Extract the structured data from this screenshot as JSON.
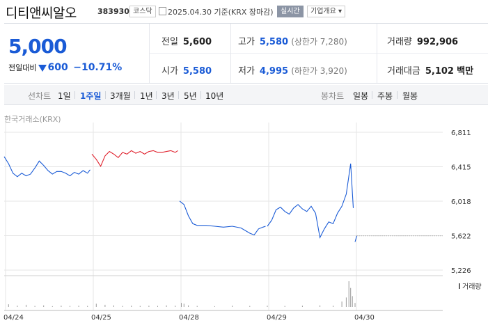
{
  "header": {
    "name": "디티앤씨알오",
    "code": "383930",
    "market": "코스닥",
    "date": "2025.04.30",
    "basis": "기준(KRX 장마감)",
    "realtime": "실시간",
    "overview": "기업개요"
  },
  "quote": {
    "price": "5,000",
    "change_label": "전일대비",
    "change": "600",
    "change_pct": "−10.71%",
    "prev_label": "전일",
    "prev": "5,600",
    "high_label": "고가",
    "high": "5,580",
    "upper_limit": "(상한가 7,280)",
    "volume_label": "거래량",
    "volume": "992,906",
    "open_label": "시가",
    "open": "5,580",
    "low_label": "저가",
    "low": "4,995",
    "lower_limit": "(하한가 3,920)",
    "amount_label": "거래대금",
    "amount": "5,102",
    "amount_unit": "백만"
  },
  "toolbar": {
    "line_label": "선차트",
    "line_periods": [
      "1일",
      "1주일",
      "3개월",
      "1년",
      "3년",
      "5년",
      "10년"
    ],
    "active_period": "1주일",
    "candle_label": "봉차트",
    "candle_periods": [
      "일봉",
      "주봉",
      "월봉"
    ]
  },
  "colors": {
    "up": "#e0202c",
    "down": "#1a5bd6",
    "grid": "#e6e6e6"
  },
  "chart_data": {
    "type": "line",
    "source": "한국거래소(KRX)",
    "y_ticks": [
      6811,
      6415,
      6018,
      5622,
      5226
    ],
    "ylim": [
      5226,
      6811
    ],
    "x_ticks": [
      "04/24",
      "04/25",
      "04/28",
      "04/29",
      "04/30"
    ],
    "volume_label": "거래량",
    "reference_price": 5600,
    "series": [
      {
        "color": "up_down_by_day",
        "segments": [
          {
            "day": "04/24",
            "trend": "down",
            "x": [
              0,
              0.05,
              0.1,
              0.15,
              0.2,
              0.25,
              0.3,
              0.35,
              0.4,
              0.45,
              0.5,
              0.55,
              0.6,
              0.65,
              0.7,
              0.75,
              0.8,
              0.85,
              0.9,
              0.95,
              0.98
            ],
            "y": [
              6530,
              6450,
              6340,
              6300,
              6340,
              6310,
              6330,
              6400,
              6480,
              6430,
              6370,
              6330,
              6360,
              6360,
              6340,
              6310,
              6350,
              6330,
              6370,
              6340,
              6380
            ]
          },
          {
            "day": "04/25",
            "trend": "up",
            "x": [
              1.0,
              1.05,
              1.1,
              1.15,
              1.2,
              1.25,
              1.3,
              1.35,
              1.4,
              1.45,
              1.5,
              1.55,
              1.6,
              1.65,
              1.7,
              1.75,
              1.8,
              1.85,
              1.9,
              1.95,
              1.98
            ],
            "y": [
              6560,
              6500,
              6420,
              6540,
              6590,
              6560,
              6520,
              6580,
              6560,
              6600,
              6570,
              6590,
              6560,
              6590,
              6600,
              6580,
              6580,
              6590,
              6600,
              6580,
              6600
            ]
          },
          {
            "day": "04/28",
            "trend": "down",
            "x": [
              2.0,
              2.05,
              2.1,
              2.15,
              2.2,
              2.3,
              2.4,
              2.5,
              2.6,
              2.7,
              2.8,
              2.85,
              2.9,
              2.95,
              2.98
            ],
            "y": [
              6020,
              5980,
              5850,
              5760,
              5740,
              5740,
              5730,
              5720,
              5730,
              5710,
              5650,
              5630,
              5700,
              5720,
              5730
            ]
          },
          {
            "day": "04/29",
            "trend": "down",
            "x": [
              3.0,
              3.05,
              3.1,
              3.15,
              3.2,
              3.25,
              3.3,
              3.35,
              3.4,
              3.45,
              3.5,
              3.55,
              3.6,
              3.65,
              3.7,
              3.75,
              3.8,
              3.85,
              3.9,
              3.95,
              3.98
            ],
            "y": [
              5730,
              5800,
              5920,
              5950,
              5900,
              5870,
              5940,
              5980,
              5930,
              5900,
              5960,
              5880,
              5600,
              5700,
              5780,
              5760,
              5880,
              5960,
              6100,
              6450,
              5940
            ]
          },
          {
            "day": "04/30",
            "trend": "down",
            "x": [
              4.0,
              4.02
            ],
            "y": [
              5550,
              5620
            ]
          }
        ]
      }
    ],
    "volume_series": {
      "x": [
        0.05,
        0.15,
        0.25,
        0.35,
        0.45,
        0.55,
        0.65,
        0.75,
        0.85,
        0.95,
        1.05,
        1.15,
        1.25,
        1.35,
        1.45,
        1.55,
        1.65,
        1.75,
        1.85,
        1.95,
        2.02,
        2.05,
        2.1,
        2.2,
        2.4,
        2.6,
        2.8,
        3.0,
        3.2,
        3.4,
        3.6,
        3.75,
        3.85,
        3.9,
        3.93,
        3.95,
        3.97,
        4.0
      ],
      "values": [
        0.1,
        0.05,
        0.08,
        0.04,
        0.06,
        0.03,
        0.05,
        0.04,
        0.05,
        0.04,
        0.12,
        0.08,
        0.06,
        0.04,
        0.05,
        0.04,
        0.05,
        0.04,
        0.06,
        0.05,
        0.15,
        0.12,
        0.06,
        0.04,
        0.03,
        0.05,
        0.04,
        0.05,
        0.04,
        0.05,
        0.06,
        0.05,
        0.2,
        0.35,
        0.95,
        0.7,
        0.4,
        0.15
      ]
    }
  }
}
